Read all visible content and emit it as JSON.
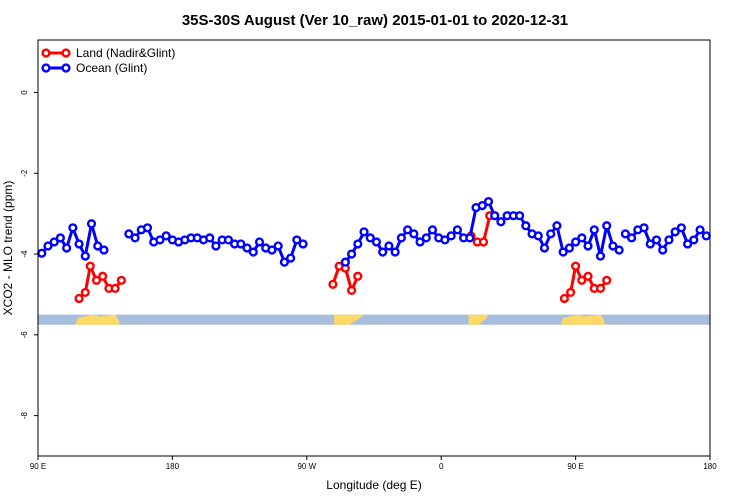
{
  "chart_data": {
    "type": "line",
    "title": "35S-30S August (Ver 10_raw)   2015-01-01 to 2020-12-31",
    "xlabel": "Longitude (deg E)",
    "ylabel": "XCO2 - MLO trend (ppm)",
    "xlim": [
      -90,
      180
    ],
    "ylim": [
      -9,
      1.3
    ],
    "x_ticks": [
      {
        "value": -90,
        "label": "90 E"
      },
      {
        "value": -36,
        "label": "180"
      },
      {
        "value": 18,
        "label": "90 W"
      },
      {
        "value": 72,
        "label": "0"
      },
      {
        "value": 126,
        "label": "90 E"
      },
      {
        "value": 180,
        "label": "180"
      }
    ],
    "y_ticks": [
      0,
      -2,
      -4,
      -6,
      -8
    ],
    "grid": false,
    "legend_position": "top-left",
    "colors": {
      "Land (Nadir&Glint)": "#ff0000",
      "Ocean (Glint)": "#0000ff",
      "ocean_band": "#a6bddb",
      "land_band": "#fdd967"
    },
    "series": [
      {
        "name": "Land (Nadir&Glint)",
        "color": "#ff0000",
        "segments": [
          [
            [
              -73.5,
              -5.1
            ],
            [
              -71,
              -4.95
            ],
            [
              -69,
              -4.3
            ],
            [
              -66.5,
              -4.65
            ],
            [
              -64,
              -4.55
            ],
            [
              -61.5,
              -4.85
            ],
            [
              -59,
              -4.85
            ],
            [
              -56.5,
              -4.65
            ]
          ],
          [
            [
              28.5,
              -4.75
            ],
            [
              31,
              -4.3
            ],
            [
              33.5,
              -4.35
            ],
            [
              36,
              -4.9
            ],
            [
              38.5,
              -4.55
            ]
          ],
          [
            [
              84,
              -3.55
            ],
            [
              86.5,
              -3.7
            ],
            [
              89,
              -3.7
            ],
            [
              91.5,
              -3.05
            ]
          ],
          [
            [
              121.5,
              -5.1
            ],
            [
              124,
              -4.95
            ],
            [
              126,
              -4.3
            ],
            [
              128.5,
              -4.65
            ],
            [
              131,
              -4.55
            ],
            [
              133.5,
              -4.85
            ],
            [
              136,
              -4.85
            ],
            [
              138.5,
              -4.65
            ]
          ]
        ]
      },
      {
        "name": "Ocean (Glint)",
        "color": "#0000ff",
        "segments": [
          [
            [
              -88.5,
              -3.98
            ],
            [
              -86,
              -3.8
            ],
            [
              -83.5,
              -3.7
            ],
            [
              -81,
              -3.6
            ],
            [
              -78.5,
              -3.85
            ],
            [
              -76,
              -3.35
            ],
            [
              -73.5,
              -3.75
            ],
            [
              -71,
              -4.05
            ],
            [
              -68.5,
              -3.25
            ],
            [
              -66,
              -3.8
            ],
            [
              -63.5,
              -3.9
            ]
          ],
          [
            [
              -53.5,
              -3.5
            ],
            [
              -51,
              -3.6
            ],
            [
              -48.5,
              -3.4
            ],
            [
              -46,
              -3.35
            ],
            [
              -43.5,
              -3.7
            ],
            [
              -41,
              -3.65
            ],
            [
              -38.5,
              -3.55
            ],
            [
              -36,
              -3.65
            ],
            [
              -33.5,
              -3.7
            ],
            [
              -31,
              -3.65
            ],
            [
              -28.5,
              -3.6
            ],
            [
              -26,
              -3.6
            ],
            [
              -23.5,
              -3.65
            ],
            [
              -21,
              -3.6
            ],
            [
              -18.5,
              -3.8
            ],
            [
              -16,
              -3.65
            ],
            [
              -13.5,
              -3.65
            ],
            [
              -11,
              -3.75
            ],
            [
              -8.5,
              -3.75
            ],
            [
              -6,
              -3.85
            ],
            [
              -3.5,
              -3.95
            ],
            [
              -1,
              -3.7
            ],
            [
              1.5,
              -3.85
            ],
            [
              4,
              -3.9
            ],
            [
              6.5,
              -3.8
            ],
            [
              9,
              -4.2
            ],
            [
              11.5,
              -4.1
            ],
            [
              14,
              -3.65
            ],
            [
              16.5,
              -3.75
            ]
          ],
          [
            [
              33.5,
              -4.2
            ],
            [
              36,
              -4.0
            ],
            [
              38.5,
              -3.75
            ],
            [
              41,
              -3.45
            ],
            [
              43.5,
              -3.6
            ],
            [
              46,
              -3.7
            ],
            [
              48.5,
              -3.95
            ],
            [
              51,
              -3.8
            ],
            [
              53.5,
              -3.95
            ],
            [
              56,
              -3.6
            ],
            [
              58.5,
              -3.4
            ],
            [
              61,
              -3.5
            ],
            [
              63.5,
              -3.7
            ],
            [
              66,
              -3.6
            ],
            [
              68.5,
              -3.4
            ],
            [
              71,
              -3.6
            ],
            [
              73.5,
              -3.65
            ],
            [
              76,
              -3.55
            ],
            [
              78.5,
              -3.4
            ],
            [
              81,
              -3.6
            ],
            [
              83.5,
              -3.6
            ],
            [
              86,
              -2.85
            ],
            [
              88.5,
              -2.8
            ],
            [
              91,
              -2.7
            ],
            [
              93.5,
              -3.05
            ],
            [
              96,
              -3.2
            ],
            [
              98.5,
              -3.05
            ],
            [
              101,
              -3.05
            ],
            [
              103.5,
              -3.05
            ],
            [
              106,
              -3.3
            ],
            [
              108.5,
              -3.5
            ],
            [
              111,
              -3.55
            ],
            [
              113.5,
              -3.85
            ],
            [
              116,
              -3.5
            ],
            [
              118.5,
              -3.3
            ],
            [
              121,
              -3.95
            ],
            [
              123.5,
              -3.85
            ],
            [
              126,
              -3.7
            ],
            [
              128.5,
              -3.6
            ],
            [
              131,
              -3.8
            ],
            [
              133.5,
              -3.4
            ],
            [
              136,
              -4.05
            ],
            [
              138.5,
              -3.3
            ],
            [
              141,
              -3.8
            ],
            [
              143.5,
              -3.9
            ]
          ],
          [
            [
              146,
              -3.5
            ],
            [
              148.5,
              -3.6
            ],
            [
              151,
              -3.4
            ],
            [
              153.5,
              -3.35
            ],
            [
              156,
              -3.75
            ],
            [
              158.5,
              -3.65
            ],
            [
              161,
              -3.9
            ],
            [
              163.5,
              -3.65
            ],
            [
              166,
              -3.45
            ],
            [
              168.5,
              -3.35
            ],
            [
              171,
              -3.75
            ],
            [
              173.5,
              -3.65
            ],
            [
              176,
              -3.4
            ],
            [
              178.5,
              -3.55
            ]
          ]
        ]
      }
    ],
    "map_band": {
      "y_range": [
        -5.5,
        -5.75
      ],
      "land_shapes": [
        {
          "name": "australia-land",
          "points": [
            [
              -75,
              -5.75
            ],
            [
              -74,
              -5.58
            ],
            [
              -71,
              -5.54
            ],
            [
              -68,
              -5.5
            ],
            [
              -65,
              -5.55
            ],
            [
              -62,
              -5.52
            ],
            [
              -59,
              -5.5
            ],
            [
              -58,
              -5.6
            ],
            [
              -57,
              -5.75
            ]
          ]
        },
        {
          "name": "south-america-land",
          "points": [
            [
              29,
              -5.75
            ],
            [
              29,
              -5.5
            ],
            [
              41,
              -5.5
            ],
            [
              39,
              -5.6
            ],
            [
              35,
              -5.75
            ]
          ]
        },
        {
          "name": "africa-land",
          "points": [
            [
              83,
              -5.75
            ],
            [
              83,
              -5.5
            ],
            [
              91,
              -5.5
            ],
            [
              90,
              -5.6
            ],
            [
              87,
              -5.75
            ]
          ]
        },
        {
          "name": "australia-land-2",
          "points": [
            [
              120,
              -5.75
            ],
            [
              121,
              -5.58
            ],
            [
              124,
              -5.54
            ],
            [
              127,
              -5.5
            ],
            [
              130,
              -5.55
            ],
            [
              133,
              -5.52
            ],
            [
              136,
              -5.5
            ],
            [
              137,
              -5.6
            ],
            [
              138,
              -5.75
            ]
          ]
        }
      ]
    }
  }
}
